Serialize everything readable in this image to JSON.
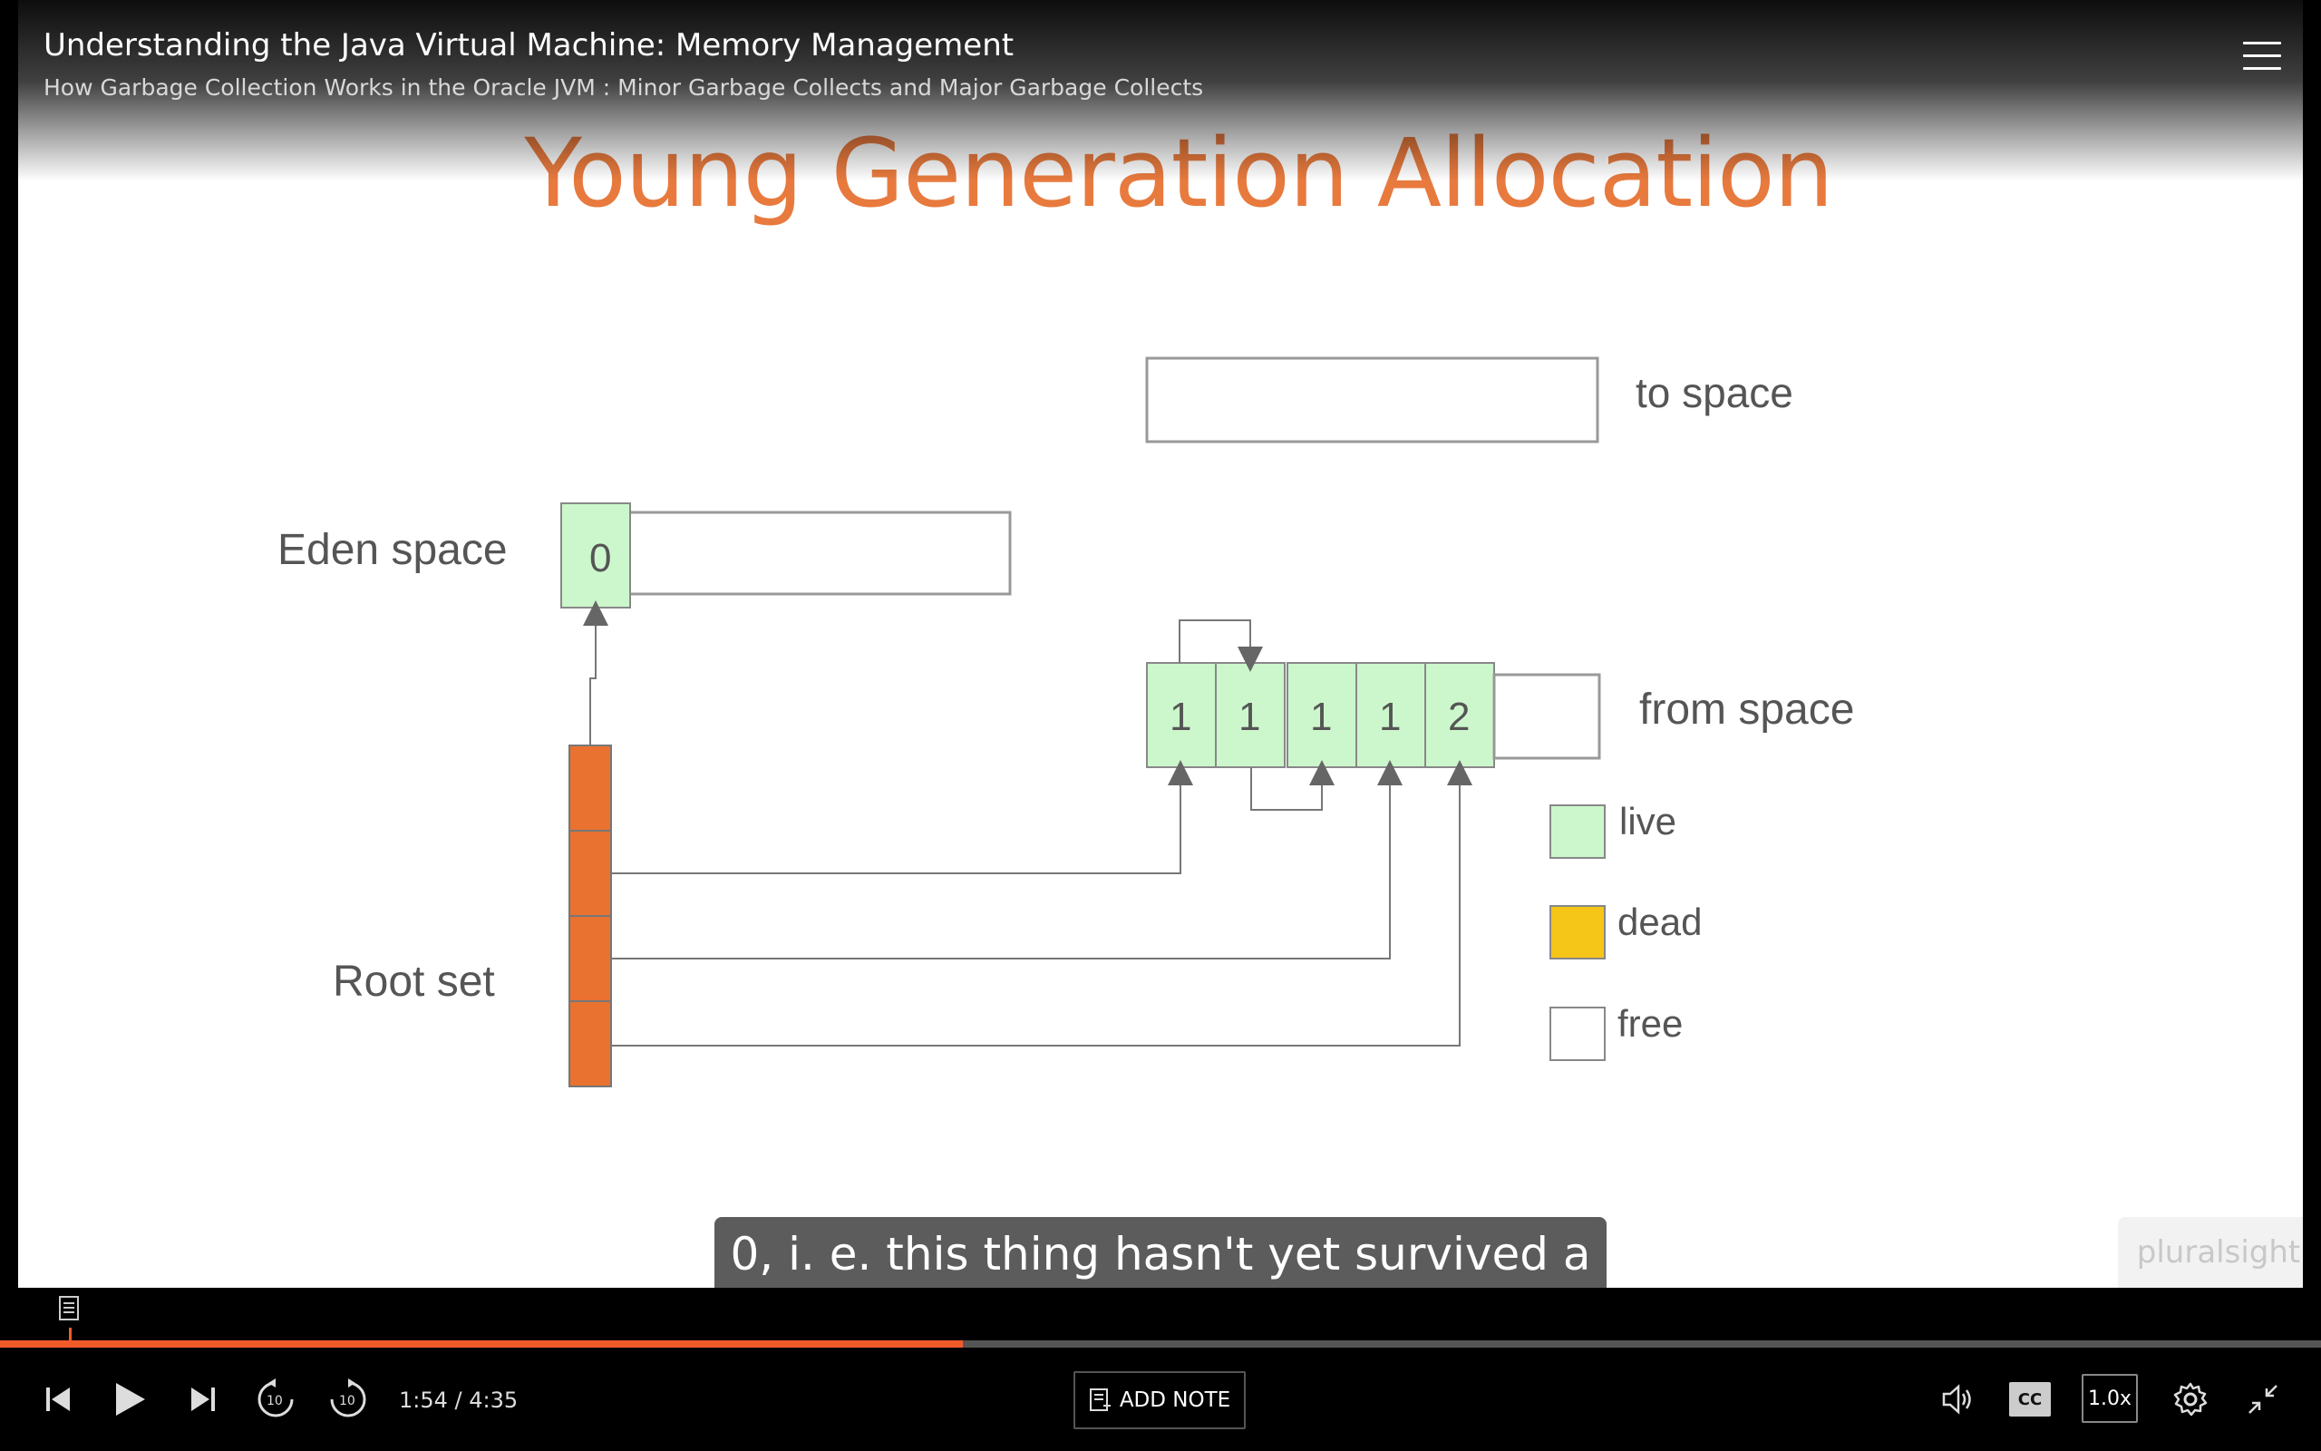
{
  "header": {
    "course_title": "Understanding the Java Virtual Machine: Memory Management",
    "module_title": "How Garbage Collection Works in the Oracle JVM : Minor Garbage Collects and Major Garbage Collects"
  },
  "slide": {
    "title": "Young Generation Allocation",
    "labels": {
      "to_space": "to space",
      "eden_space": "Eden space",
      "from_space": "from space",
      "root_set": "Root set"
    },
    "eden_cell": "0",
    "from_cells": [
      "1",
      "1",
      "1",
      "1",
      "2"
    ],
    "legend": [
      {
        "label": "live",
        "color": "#ccf7cc"
      },
      {
        "label": "dead",
        "color": "#f5c518"
      },
      {
        "label": "free",
        "color": "#ffffff"
      }
    ],
    "colors": {
      "live": "#ccf7cc",
      "root": "#e97231",
      "title": "#e87a3e"
    }
  },
  "caption": "0, i. e. this thing hasn't yet survived a",
  "watermark": "pluralsight",
  "player": {
    "time": "1:54 / 4:35",
    "progress_fraction": 0.415,
    "add_note_label": "ADD NOTE",
    "cc_label": "CC",
    "speed_label": "1.0x",
    "accent": "#f15b2a"
  }
}
